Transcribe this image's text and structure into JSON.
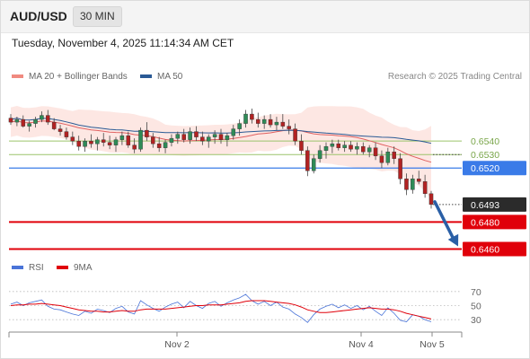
{
  "header": {
    "pair": "AUD/USD",
    "timeframe": "30 MIN",
    "timestamp": "Tuesday, November 4, 2025 11:14:34 AM CET"
  },
  "legend": {
    "ma20_label": "MA 20 + Bollinger Bands",
    "ma50_label": "MA 50",
    "rsi_label": "RSI",
    "ma9_label": "9MA"
  },
  "credit": "Research © 2025 Trading Central",
  "colors": {
    "up": "#2e8b57",
    "down": "#b22222",
    "ma20": "#e06060",
    "ma50": "#2a5a95",
    "band": "#fbd3cc",
    "resistance": "#9bc46b",
    "pivot": "#3a7be8",
    "support": "#e0000a",
    "arrow": "#2a5fa6",
    "rsi": "#4a74d8"
  },
  "chart_data": [
    {
      "type": "candlestick",
      "title": "",
      "xlabel": "",
      "ylabel": "",
      "x_ticks": [
        "Nov 2",
        "Nov 4",
        "Nov 5"
      ],
      "ylim": [
        0.6455,
        0.6578
      ],
      "last_price": {
        "label": "0.6493",
        "value": 0.6493
      },
      "levels": [
        {
          "label": "0.6540",
          "value": 0.654,
          "kind": "resistance"
        },
        {
          "label": "0.6530",
          "value": 0.653,
          "kind": "resistance"
        },
        {
          "label": "0.6520",
          "value": 0.652,
          "kind": "pivot"
        },
        {
          "label": "0.6480",
          "value": 0.648,
          "kind": "support"
        },
        {
          "label": "0.6460",
          "value": 0.646,
          "kind": "support"
        }
      ],
      "forecast": {
        "direction": "down",
        "from": 0.6495,
        "to": 0.6462
      },
      "candles": [
        [
          0.6557,
          0.656,
          0.6552,
          0.6554
        ],
        [
          0.6554,
          0.6558,
          0.6551,
          0.6556
        ],
        [
          0.6556,
          0.6559,
          0.655,
          0.6551
        ],
        [
          0.6551,
          0.6555,
          0.6547,
          0.6553
        ],
        [
          0.6553,
          0.6558,
          0.655,
          0.6556
        ],
        [
          0.6556,
          0.6562,
          0.6554,
          0.6559
        ],
        [
          0.6559,
          0.6563,
          0.6552,
          0.6554
        ],
        [
          0.6554,
          0.6557,
          0.6548,
          0.6549
        ],
        [
          0.6549,
          0.6552,
          0.6544,
          0.6547
        ],
        [
          0.6547,
          0.655,
          0.6541,
          0.6543
        ],
        [
          0.6543,
          0.6547,
          0.6537,
          0.654
        ],
        [
          0.654,
          0.6544,
          0.6533,
          0.6536
        ],
        [
          0.6536,
          0.6542,
          0.6532,
          0.654
        ],
        [
          0.654,
          0.6545,
          0.6535,
          0.6538
        ],
        [
          0.6538,
          0.6543,
          0.6533,
          0.6541
        ],
        [
          0.6541,
          0.6546,
          0.6536,
          0.6539
        ],
        [
          0.6539,
          0.6544,
          0.6534,
          0.6537
        ],
        [
          0.6537,
          0.6543,
          0.6532,
          0.6541
        ],
        [
          0.6541,
          0.6547,
          0.6537,
          0.6544
        ],
        [
          0.6544,
          0.6547,
          0.6535,
          0.6537
        ],
        [
          0.6537,
          0.6542,
          0.6531,
          0.6534
        ],
        [
          0.6534,
          0.655,
          0.6532,
          0.6548
        ],
        [
          0.6548,
          0.6554,
          0.654,
          0.6543
        ],
        [
          0.6543,
          0.6546,
          0.6535,
          0.6538
        ],
        [
          0.6538,
          0.6543,
          0.6532,
          0.6535
        ],
        [
          0.6535,
          0.6541,
          0.6531,
          0.6539
        ],
        [
          0.6539,
          0.6545,
          0.6536,
          0.6542
        ],
        [
          0.6542,
          0.6547,
          0.6538,
          0.6545
        ],
        [
          0.6545,
          0.6549,
          0.6539,
          0.6541
        ],
        [
          0.6541,
          0.655,
          0.6538,
          0.6547
        ],
        [
          0.6547,
          0.6551,
          0.654,
          0.6543
        ],
        [
          0.6543,
          0.6547,
          0.6537,
          0.654
        ],
        [
          0.654,
          0.6545,
          0.6535,
          0.6543
        ],
        [
          0.6543,
          0.6548,
          0.6538,
          0.6545
        ],
        [
          0.6545,
          0.6549,
          0.6538,
          0.6541
        ],
        [
          0.6541,
          0.6546,
          0.6536,
          0.6544
        ],
        [
          0.6544,
          0.6552,
          0.6541,
          0.6549
        ],
        [
          0.6549,
          0.6556,
          0.6544,
          0.6553
        ],
        [
          0.6553,
          0.6563,
          0.655,
          0.656
        ],
        [
          0.656,
          0.6564,
          0.6553,
          0.6556
        ],
        [
          0.6556,
          0.6561,
          0.655,
          0.6553
        ],
        [
          0.6553,
          0.6559,
          0.6549,
          0.6556
        ],
        [
          0.6556,
          0.656,
          0.655,
          0.6552
        ],
        [
          0.6552,
          0.6558,
          0.6548,
          0.6554
        ],
        [
          0.6554,
          0.656,
          0.6549,
          0.6551
        ],
        [
          0.6551,
          0.6556,
          0.6545,
          0.6549
        ],
        [
          0.6549,
          0.6553,
          0.6537,
          0.654
        ],
        [
          0.654,
          0.6545,
          0.653,
          0.6533
        ],
        [
          0.6533,
          0.6536,
          0.6514,
          0.6518
        ],
        [
          0.6518,
          0.653,
          0.6516,
          0.6527
        ],
        [
          0.6527,
          0.6537,
          0.6524,
          0.6533
        ],
        [
          0.6533,
          0.6539,
          0.6527,
          0.6536
        ],
        [
          0.6536,
          0.6541,
          0.6531,
          0.6538
        ],
        [
          0.6538,
          0.6541,
          0.6533,
          0.6535
        ],
        [
          0.6535,
          0.654,
          0.6532,
          0.6537
        ],
        [
          0.6537,
          0.654,
          0.6532,
          0.6534
        ],
        [
          0.6534,
          0.6539,
          0.653,
          0.6536
        ],
        [
          0.6536,
          0.6539,
          0.653,
          0.6532
        ],
        [
          0.6532,
          0.6537,
          0.6528,
          0.6535
        ],
        [
          0.6535,
          0.6539,
          0.6526,
          0.6529
        ],
        [
          0.6529,
          0.6533,
          0.652,
          0.6524
        ],
        [
          0.6524,
          0.6535,
          0.6522,
          0.6532
        ],
        [
          0.6532,
          0.6536,
          0.6523,
          0.6527
        ],
        [
          0.6527,
          0.6531,
          0.6508,
          0.6512
        ],
        [
          0.6512,
          0.6516,
          0.65,
          0.6504
        ],
        [
          0.6504,
          0.6515,
          0.6501,
          0.6512
        ],
        [
          0.6512,
          0.6518,
          0.6508,
          0.651
        ],
        [
          0.651,
          0.6515,
          0.6498,
          0.6501
        ],
        [
          0.6501,
          0.6503,
          0.649,
          0.6493
        ]
      ],
      "ma20_note": "MA 20 with Bollinger Bands shown as shaded band",
      "ma50_note": "MA 50 shown as blue line"
    },
    {
      "type": "line",
      "title": "",
      "xlabel": "",
      "ylabel": "",
      "y_ticks": [
        "70",
        "50",
        "30"
      ],
      "ylim": [
        20,
        80
      ],
      "series": [
        {
          "name": "RSI",
          "values": [
            52,
            55,
            50,
            54,
            56,
            58,
            49,
            45,
            44,
            41,
            38,
            36,
            42,
            39,
            45,
            43,
            40,
            46,
            49,
            41,
            38,
            57,
            51,
            46,
            42,
            48,
            52,
            55,
            47,
            56,
            50,
            46,
            53,
            56,
            49,
            54,
            58,
            61,
            66,
            57,
            52,
            56,
            50,
            55,
            48,
            45,
            38,
            33,
            26,
            37,
            45,
            49,
            52,
            47,
            51,
            46,
            50,
            44,
            49,
            42,
            36,
            47,
            39,
            29,
            27,
            37,
            35,
            30,
            27
          ]
        },
        {
          "name": "9MA",
          "values": [
            50,
            51,
            51,
            52,
            52,
            53,
            52,
            51,
            50,
            48,
            46,
            44,
            43,
            42,
            42,
            41,
            41,
            42,
            43,
            42,
            42,
            44,
            45,
            45,
            45,
            45,
            46,
            47,
            48,
            49,
            50,
            50,
            51,
            51,
            51,
            52,
            53,
            54,
            56,
            57,
            57,
            57,
            56,
            55,
            54,
            53,
            51,
            48,
            44,
            42,
            40,
            40,
            41,
            42,
            43,
            44,
            45,
            46,
            47,
            46,
            45,
            45,
            44,
            42,
            39,
            37,
            35,
            33,
            31
          ]
        }
      ]
    }
  ]
}
